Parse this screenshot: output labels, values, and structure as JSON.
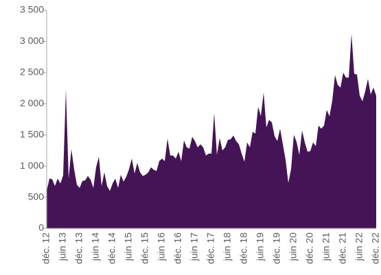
{
  "chart_data": {
    "type": "area",
    "color": "#451456",
    "categories": [
      "déc. 12",
      null,
      null,
      null,
      null,
      null,
      "juin 13",
      null,
      null,
      null,
      null,
      null,
      "déc. 13",
      null,
      null,
      null,
      null,
      null,
      "juin 14",
      null,
      null,
      null,
      null,
      null,
      "déc. 14",
      null,
      null,
      null,
      null,
      null,
      "juin 15",
      null,
      null,
      null,
      null,
      null,
      "déc. 15",
      null,
      null,
      null,
      null,
      null,
      "juin 16",
      null,
      null,
      null,
      null,
      null,
      "déc. 16",
      null,
      null,
      null,
      null,
      null,
      "juin 17",
      null,
      null,
      null,
      null,
      null,
      "déc. 17",
      null,
      null,
      null,
      null,
      null,
      "juin 18",
      null,
      null,
      null,
      null,
      null,
      "déc. 18",
      null,
      null,
      null,
      null,
      null,
      "juin 19",
      null,
      null,
      null,
      null,
      null,
      "déc. 19",
      null,
      null,
      null,
      null,
      null,
      "juin 20",
      null,
      null,
      null,
      null,
      null,
      "déc. 20",
      null,
      null,
      null,
      null,
      null,
      "juin 21",
      null,
      null,
      null,
      null,
      null,
      "déc. 21",
      null,
      null,
      null,
      null,
      null,
      "juin 22",
      null,
      null,
      null,
      null,
      null,
      "déc. 22"
    ],
    "values": [
      600,
      800,
      790,
      680,
      800,
      720,
      850,
      2230,
      800,
      1270,
      950,
      700,
      650,
      760,
      770,
      840,
      780,
      650,
      980,
      1150,
      680,
      900,
      680,
      600,
      720,
      800,
      650,
      860,
      750,
      830,
      950,
      1120,
      880,
      1050,
      900,
      840,
      860,
      900,
      980,
      940,
      920,
      1080,
      1120,
      1080,
      1440,
      1170,
      1170,
      1120,
      1230,
      1080,
      1410,
      1300,
      1280,
      1470,
      1400,
      1300,
      1350,
      1300,
      1170,
      1200,
      1200,
      1850,
      1180,
      1450,
      1250,
      1300,
      1420,
      1430,
      1490,
      1400,
      1350,
      1200,
      1070,
      1380,
      1300,
      1550,
      1520,
      1950,
      1800,
      2180,
      1620,
      1740,
      1700,
      1480,
      1400,
      1600,
      1350,
      1100,
      730,
      950,
      1500,
      1390,
      1180,
      1570,
      1380,
      1230,
      1240,
      1380,
      1320,
      1650,
      1600,
      1650,
      1900,
      1800,
      2050,
      2460,
      2300,
      2260,
      2500,
      2420,
      2420,
      3120,
      2480,
      2470,
      2130,
      2040,
      2200,
      2400,
      2150,
      2260,
      2130
    ],
    "ylim": [
      0,
      3500
    ],
    "yticks": [
      0,
      500,
      {
        "value": 1000,
        "label": "1 000"
      },
      {
        "value": 1500,
        "label": "1 500"
      },
      {
        "value": 2000,
        "label": "2 000"
      },
      {
        "value": 2500,
        "label": "2 500"
      },
      {
        "value": 3000,
        "label": "3 000"
      },
      {
        "value": 3500,
        "label": "3 500"
      }
    ]
  }
}
